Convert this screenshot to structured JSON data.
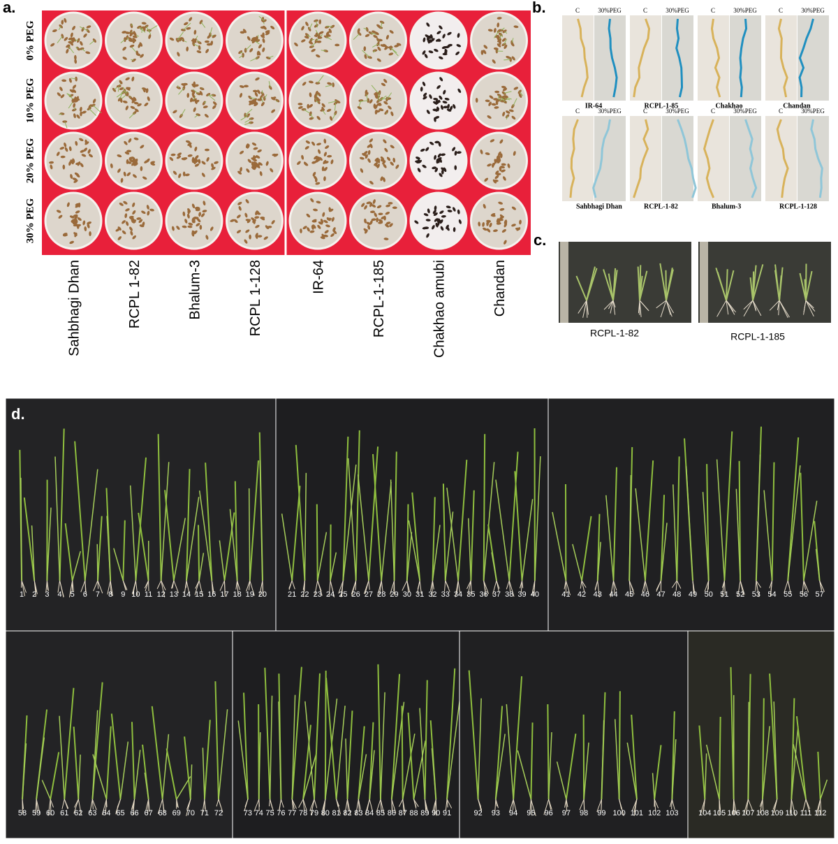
{
  "panels": {
    "a": {
      "label": "a.",
      "rows": [
        "0% PEG",
        "10% PEG",
        "20% PEG",
        "30% PEG"
      ],
      "columns": [
        "Sahbhagi Dhan",
        "RCPL 1-82",
        "Bhalum-3",
        "RCPL 1-128",
        "IR-64",
        "RCPL-1-185",
        "Chakhao amubi",
        "Chandan"
      ]
    },
    "b": {
      "label": "b.",
      "control": "C",
      "treatment": "30%PEG",
      "top": [
        "IR-64",
        "RCPL-1-85",
        "Chakhao",
        "Chandan"
      ],
      "bottom": [
        "Sahbhagi Dhan",
        "RCPL-1-82",
        "Bhalum-3",
        "RCPL-1-128"
      ]
    },
    "c": {
      "label": "c.",
      "photos": [
        "RCPL-1-82",
        "RCPL-1-185"
      ]
    },
    "d": {
      "label": "d.",
      "photos": [
        {
          "labels": [
            1,
            2,
            3,
            4,
            5,
            6,
            7,
            8,
            9,
            10,
            11,
            12,
            13,
            14,
            15,
            16,
            17,
            18,
            19,
            20
          ]
        },
        {
          "labels": [
            21,
            22,
            23,
            24,
            25,
            26,
            27,
            28,
            29,
            30,
            31,
            32,
            33,
            34,
            35,
            36,
            37,
            38,
            39,
            40
          ]
        },
        {
          "labels": [
            41,
            42,
            43,
            44,
            45,
            46,
            47,
            48,
            49,
            50,
            51,
            52,
            53,
            54,
            55,
            56,
            57
          ]
        },
        {
          "labels": [
            58,
            59,
            60,
            61,
            62,
            63,
            64,
            65,
            66,
            67,
            68,
            69,
            70,
            71,
            72
          ]
        },
        {
          "labels": [
            73,
            74,
            75,
            76,
            77,
            78,
            79,
            80,
            81,
            82,
            83,
            84,
            85,
            86,
            87,
            88,
            89,
            90,
            91
          ]
        },
        {
          "labels": [
            92,
            93,
            94,
            95,
            96,
            97,
            98,
            99,
            100,
            101,
            102,
            103
          ]
        },
        {
          "labels": [
            104,
            105,
            106,
            107,
            108,
            109,
            110,
            111,
            112
          ]
        }
      ]
    }
  }
}
